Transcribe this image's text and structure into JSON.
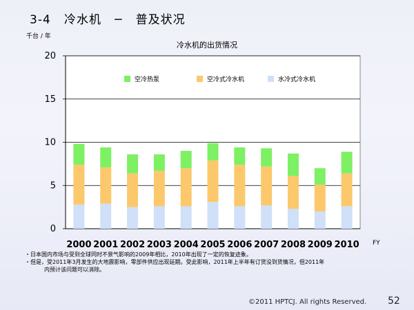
{
  "slide": {
    "title": "3-4   冷水机   ─   普及状况",
    "unit_label": "千台 / 年",
    "notes": [
      "・日本国内市场与受到全球同时不景气影响的2009年相比，2010年出现了一定的恢复迹象。",
      "・但是，受2011年3月发生的大地震影响，零部件供应出现延期。受此影响，2011年上半年有订货没到货情况，但2011年",
      "内预计该问题可以消除。"
    ],
    "footer": "©2011 HPTCJ. All rights Reserved.",
    "page_number": "52"
  },
  "colors": {
    "air_heat_pump": "#7df064",
    "air_chiller": "#fbc86b",
    "water_chiller": "#cfe0f8",
    "axis": "#000000",
    "grid": "#000000",
    "plot_border": "#888888"
  },
  "chart_data": {
    "type": "bar",
    "stacked": true,
    "title": "冷水机的出货情况",
    "xlabel": "FY",
    "ylabel": "千台 / 年",
    "categories": [
      "2000",
      "2001",
      "2002",
      "2003",
      "2004",
      "2005",
      "2006",
      "2007",
      "2008",
      "2009",
      "2010"
    ],
    "series": [
      {
        "name": "水冷式冷水机",
        "values": [
          2.8,
          2.9,
          2.5,
          2.6,
          2.6,
          3.1,
          2.6,
          2.7,
          2.3,
          2.0,
          2.6
        ]
      },
      {
        "name": "空冷式冷水机",
        "values": [
          4.6,
          4.2,
          3.9,
          4.1,
          4.4,
          4.8,
          4.8,
          4.5,
          3.8,
          3.1,
          3.8
        ]
      },
      {
        "name": "空冷热泵",
        "values": [
          2.4,
          2.3,
          2.2,
          1.9,
          2.0,
          2.0,
          2.0,
          2.1,
          2.6,
          1.9,
          2.5
        ]
      }
    ],
    "legend_order": [
      "空冷热泵",
      "空冷式冷水机",
      "水冷式冷水机"
    ],
    "ylim": [
      0,
      20
    ],
    "yticks": [
      0,
      5,
      10,
      15,
      20
    ],
    "grid": true,
    "legend_position": "top"
  }
}
